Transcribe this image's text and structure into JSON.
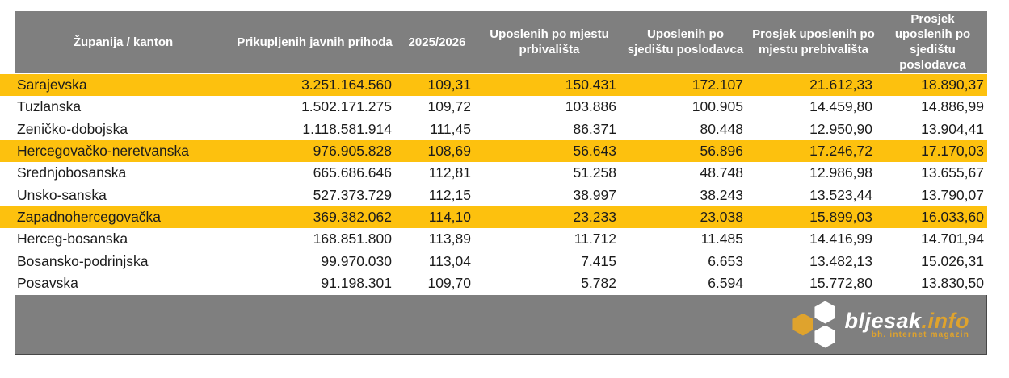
{
  "chart_data": {
    "type": "table",
    "columns": [
      "Županija / kanton",
      "Prikupljenih javnih prihoda",
      "2025/2026",
      "Uposlenih po mjestu prbivališta",
      "Uposlenih po sjedištu poslodavca",
      "Prosjek uposlenih po mjestu prebivališta",
      "Prosjek uposlenih po sjedištu poslodavca"
    ],
    "rows": [
      {
        "name": "Sarajevska",
        "values": [
          "3.251.164.560",
          "109,31",
          "150.431",
          "172.107",
          "21.612,33",
          "18.890,37"
        ],
        "highlighted": true
      },
      {
        "name": "Tuzlanska",
        "values": [
          "1.502.171.275",
          "109,72",
          "103.886",
          "100.905",
          "14.459,80",
          "14.886,99"
        ],
        "highlighted": false
      },
      {
        "name": "Zeničko-dobojska",
        "values": [
          "1.118.581.914",
          "111,45",
          "86.371",
          "80.448",
          "12.950,90",
          "13.904,41"
        ],
        "highlighted": false
      },
      {
        "name": "Hercegovačko-neretvanska",
        "values": [
          "976.905.828",
          "108,69",
          "56.643",
          "56.896",
          "17.246,72",
          "17.170,03"
        ],
        "highlighted": true
      },
      {
        "name": "Srednjobosanska",
        "values": [
          "665.686.646",
          "112,81",
          "51.258",
          "48.748",
          "12.986,98",
          "13.655,67"
        ],
        "highlighted": false
      },
      {
        "name": "Unsko-sanska",
        "values": [
          "527.373.729",
          "112,15",
          "38.997",
          "38.243",
          "13.523,44",
          "13.790,07"
        ],
        "highlighted": false
      },
      {
        "name": "Zapadnohercegovačka",
        "values": [
          "369.382.062",
          "114,10",
          "23.233",
          "23.038",
          "15.899,03",
          "16.033,60"
        ],
        "highlighted": true
      },
      {
        "name": "Herceg-bosanska",
        "values": [
          "168.851.800",
          "113,89",
          "11.712",
          "11.485",
          "14.416,99",
          "14.701,94"
        ],
        "highlighted": false
      },
      {
        "name": "Bosansko-podrinjska",
        "values": [
          "99.970.030",
          "113,04",
          "7.415",
          "6.653",
          "13.482,13",
          "15.026,31"
        ],
        "highlighted": false
      },
      {
        "name": "Posavska",
        "values": [
          "91.198.301",
          "109,70",
          "5.782",
          "6.594",
          "15.772,80",
          "13.830,50"
        ],
        "highlighted": false
      }
    ],
    "layout": {
      "highlighted_rows": [
        "Sarajevska",
        "Hercegovačko-neretvanska",
        "Zapadnohercegovačka"
      ]
    }
  },
  "footer": {
    "logo_main": "bljesak",
    "logo_suffix": ".info",
    "tagline": "bh. internet magazin"
  },
  "colors": {
    "highlight": "#fdc10e",
    "gray": "#7f7f7f",
    "gold": "#dfa32d"
  }
}
